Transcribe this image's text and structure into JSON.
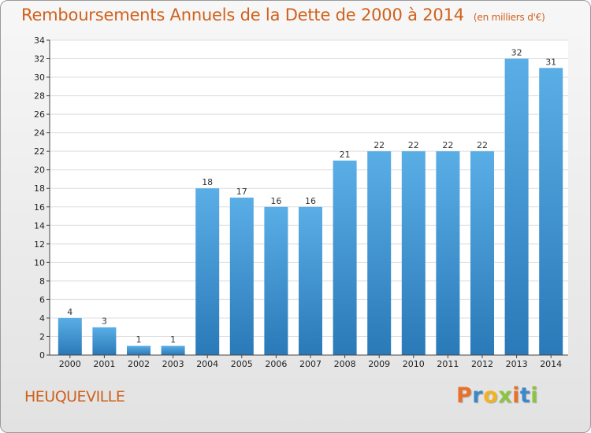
{
  "chart_data": {
    "type": "bar",
    "title": "Remboursements Annuels de la Dette de 2000 à 2014",
    "subtitle": "(en milliers d'€)",
    "categories": [
      "2000",
      "2001",
      "2002",
      "2003",
      "2004",
      "2005",
      "2006",
      "2007",
      "2008",
      "2009",
      "2010",
      "2011",
      "2012",
      "2013",
      "2014"
    ],
    "values": [
      4,
      3,
      1,
      1,
      18,
      17,
      16,
      16,
      21,
      22,
      22,
      22,
      22,
      32,
      31
    ],
    "data_labels": [
      "4",
      "3",
      "1",
      "1",
      "18",
      "17",
      "16",
      "16",
      "21",
      "22",
      "22",
      "22",
      "22",
      "32",
      "31"
    ],
    "ylim": [
      0,
      34
    ],
    "yticks": [
      0,
      2,
      4,
      6,
      8,
      10,
      12,
      14,
      16,
      18,
      20,
      22,
      24,
      26,
      28,
      30,
      32,
      34
    ],
    "xlabel": "",
    "ylabel": "",
    "grid": true,
    "bar_color": "#3d8fd0"
  },
  "footer": {
    "commune": "HEUQUEVILLE",
    "logo_letters": [
      "P",
      "r",
      "o",
      "x",
      "i",
      "t",
      "i"
    ],
    "logo_colors": [
      "#e8702a",
      "#3b88c8",
      "#f2b320",
      "#8cc43f",
      "#e8702a",
      "#3b88c8",
      "#8cc43f"
    ]
  }
}
